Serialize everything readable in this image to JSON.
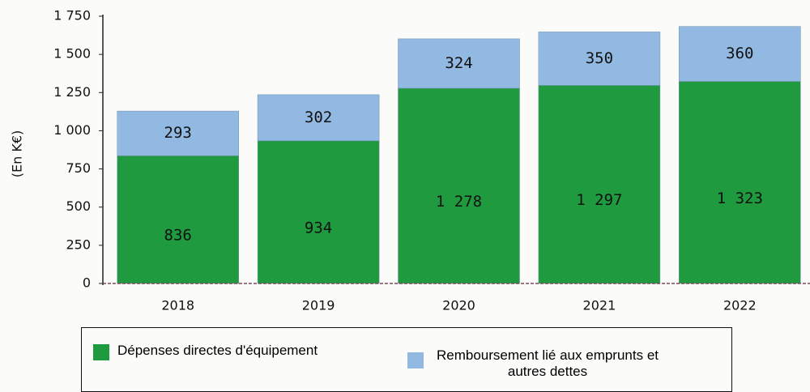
{
  "chart_data": {
    "type": "bar",
    "stacked": true,
    "y_label": "(En K€)",
    "categories": [
      "2018",
      "2019",
      "2020",
      "2021",
      "2022"
    ],
    "series": [
      {
        "name": "Dépenses directes d'équipement",
        "color": "#1f9a3e",
        "values": [
          836,
          934,
          1278,
          1297,
          1323
        ],
        "value_labels": [
          "836",
          "934",
          "1 278",
          "1 297",
          "1 323"
        ]
      },
      {
        "name": "Remboursement lié aux emprunts et autres dettes",
        "color": "#91b9e2",
        "values": [
          293,
          302,
          324,
          350,
          360
        ]
      }
    ],
    "ylim": [
      0,
      1750
    ],
    "yticks": [
      0,
      250,
      500,
      750,
      {
        "value": 1000,
        "label": "1 000"
      },
      {
        "value": 1250,
        "label": "1 250"
      },
      {
        "value": 1500,
        "label": "1 500"
      },
      {
        "value": 1750,
        "label": "1 750"
      }
    ]
  }
}
